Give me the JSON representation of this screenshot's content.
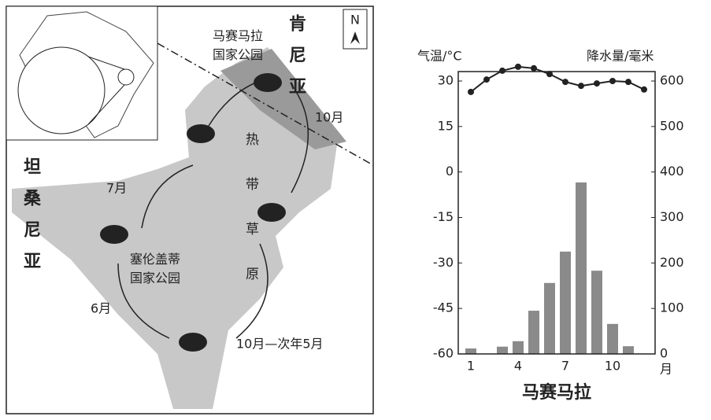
{
  "map": {
    "kenya": "肯尼亚",
    "tanzania": "坦桑尼亚",
    "masai_mara": "马赛马拉国家公园",
    "serengeti": "塞伦盖蒂国家公园",
    "savanna": "热带草原",
    "north": "N",
    "m7": "7月",
    "m10": "10月",
    "m6": "6月",
    "m10_5": "10月—次年5月"
  },
  "chart_data": {
    "type": "climate",
    "title": "马赛马拉",
    "ylabel": "气温/°C",
    "y2label": "降水量/毫米",
    "xlabel": "月",
    "x": [
      1,
      2,
      3,
      4,
      5,
      6,
      7,
      8,
      9,
      10,
      11,
      12
    ],
    "xlim": [
      0.2,
      12.7
    ],
    "xticks": [
      1,
      4,
      7,
      10
    ],
    "ylim": [
      -60,
      30
    ],
    "yticks": [
      30,
      15,
      0,
      -15,
      -30,
      -45,
      -60
    ],
    "y2lim": [
      0,
      600
    ],
    "y2ticks": [
      600,
      500,
      400,
      300,
      200,
      100,
      0
    ],
    "series": [
      {
        "type": "line",
        "color": "#222222",
        "values": [
          26.4,
          30.5,
          33.4,
          34.7,
          34.2,
          32.3,
          29.7,
          28.4,
          29.2,
          30,
          29.7,
          27.2
        ]
      },
      {
        "type": "bar",
        "axis": "y2",
        "color": "#8a8a8a",
        "values": [
          12,
          0,
          16,
          28,
          95,
          156,
          225,
          377,
          183,
          66,
          17,
          0
        ]
      }
    ]
  }
}
